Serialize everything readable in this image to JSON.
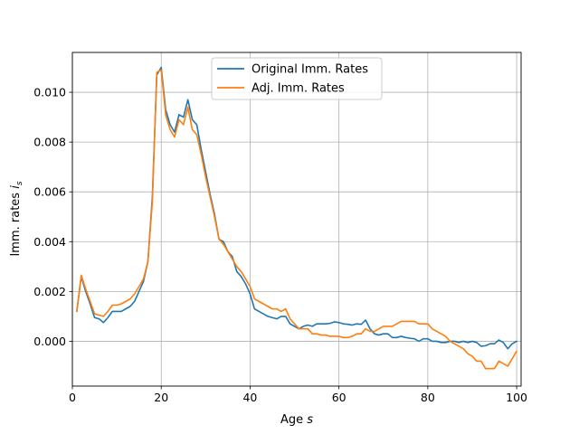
{
  "chart_data": {
    "type": "line",
    "xlabel_text": "Age ",
    "xlabel_var": "s",
    "ylabel_text": "Imm. rates ",
    "ylabel_var": "i",
    "ylabel_sub": "s",
    "xlim": [
      0,
      101
    ],
    "ylim": [
      -0.0018,
      0.0116
    ],
    "xticks": [
      0,
      20,
      40,
      60,
      80,
      100
    ],
    "xtick_labels": [
      "0",
      "20",
      "40",
      "60",
      "80",
      "100"
    ],
    "yticks": [
      0.0,
      0.002,
      0.004,
      0.006,
      0.008,
      0.01
    ],
    "ytick_labels": [
      "0.000",
      "0.002",
      "0.004",
      "0.006",
      "0.008",
      "0.010"
    ],
    "grid": true,
    "legend_position": "upper center",
    "series": [
      {
        "name": "Original Imm. Rates",
        "color": "#1f77b4",
        "x": [
          1,
          2,
          3,
          4,
          5,
          6,
          7,
          8,
          9,
          10,
          11,
          12,
          13,
          14,
          15,
          16,
          17,
          18,
          19,
          20,
          21,
          22,
          23,
          24,
          25,
          26,
          27,
          28,
          29,
          30,
          31,
          32,
          33,
          34,
          35,
          36,
          37,
          38,
          39,
          40,
          41,
          42,
          43,
          44,
          45,
          46,
          47,
          48,
          49,
          50,
          51,
          52,
          53,
          54,
          55,
          56,
          57,
          58,
          59,
          60,
          61,
          62,
          63,
          64,
          65,
          66,
          67,
          68,
          69,
          70,
          71,
          72,
          73,
          74,
          75,
          76,
          77,
          78,
          79,
          80,
          81,
          82,
          83,
          84,
          85,
          86,
          87,
          88,
          89,
          90,
          91,
          92,
          93,
          94,
          95,
          96,
          97,
          98,
          99,
          100
        ],
        "values": [
          0.0012,
          0.0026,
          0.002,
          0.0015,
          0.00095,
          0.0009,
          0.00075,
          0.00095,
          0.0012,
          0.0012,
          0.0012,
          0.0013,
          0.0014,
          0.0016,
          0.002,
          0.0024,
          0.0032,
          0.0058,
          0.0107,
          0.011,
          0.0093,
          0.0087,
          0.0084,
          0.0091,
          0.009,
          0.0097,
          0.0089,
          0.0087,
          0.0077,
          0.0068,
          0.0059,
          0.0051,
          0.0041,
          0.004,
          0.0036,
          0.0034,
          0.0028,
          0.0026,
          0.0023,
          0.0019,
          0.0013,
          0.0012,
          0.0011,
          0.001,
          0.00095,
          0.0009,
          0.001,
          0.001,
          0.0007,
          0.0006,
          0.0005,
          0.0006,
          0.00065,
          0.0006,
          0.0007,
          0.0007,
          0.0007,
          0.00072,
          0.00078,
          0.00075,
          0.0007,
          0.00068,
          0.00065,
          0.0007,
          0.00068,
          0.00085,
          0.0005,
          0.0003,
          0.00025,
          0.0003,
          0.0003,
          0.00015,
          0.00015,
          0.0002,
          0.00015,
          0.00012,
          0.0001,
          0.0,
          0.0001,
          0.0001,
          0.0,
          0.0,
          -5e-05,
          -5e-05,
          0.0,
          0.0,
          -5e-05,
          0.0,
          -5e-05,
          0.0,
          -5e-05,
          -0.0002,
          -0.00018,
          -0.0001,
          -0.0001,
          5e-05,
          -5e-05,
          -0.0003,
          -0.0001,
          0.0
        ]
      },
      {
        "name": "Adj. Imm. Rates",
        "color": "#ff7f0e",
        "x": [
          1,
          2,
          3,
          4,
          5,
          6,
          7,
          8,
          9,
          10,
          11,
          12,
          13,
          14,
          15,
          16,
          17,
          18,
          19,
          20,
          21,
          22,
          23,
          24,
          25,
          26,
          27,
          28,
          29,
          30,
          31,
          32,
          33,
          34,
          35,
          36,
          37,
          38,
          39,
          40,
          41,
          42,
          43,
          44,
          45,
          46,
          47,
          48,
          49,
          50,
          51,
          52,
          53,
          54,
          55,
          56,
          57,
          58,
          59,
          60,
          61,
          62,
          63,
          64,
          65,
          66,
          67,
          68,
          69,
          70,
          71,
          72,
          73,
          74,
          75,
          76,
          77,
          78,
          79,
          80,
          81,
          82,
          83,
          84,
          85,
          86,
          87,
          88,
          89,
          90,
          91,
          92,
          93,
          94,
          95,
          96,
          97,
          98,
          99,
          100
        ],
        "values": [
          0.0012,
          0.00265,
          0.0021,
          0.0016,
          0.0011,
          0.00105,
          0.001,
          0.0012,
          0.00145,
          0.00145,
          0.0015,
          0.0016,
          0.0017,
          0.0019,
          0.0022,
          0.0025,
          0.0032,
          0.0056,
          0.0108,
          0.0109,
          0.0091,
          0.0085,
          0.0082,
          0.0089,
          0.0087,
          0.0094,
          0.0085,
          0.0083,
          0.0075,
          0.0066,
          0.0058,
          0.005,
          0.0041,
          0.0039,
          0.0036,
          0.0033,
          0.003,
          0.0028,
          0.0025,
          0.0022,
          0.0017,
          0.0016,
          0.0015,
          0.0014,
          0.0013,
          0.0013,
          0.0012,
          0.0013,
          0.0009,
          0.0007,
          0.0005,
          0.0005,
          0.0005,
          0.0003,
          0.0003,
          0.00025,
          0.00025,
          0.0002,
          0.0002,
          0.0002,
          0.00015,
          0.00015,
          0.0002,
          0.0003,
          0.0003,
          0.0005,
          0.0004,
          0.0004,
          0.0005,
          0.0006,
          0.0006,
          0.0006,
          0.0007,
          0.0008,
          0.0008,
          0.0008,
          0.0008,
          0.0007,
          0.0007,
          0.0007,
          0.0005,
          0.0004,
          0.0003,
          0.0002,
          0.0,
          -0.0001,
          -0.0002,
          -0.0003,
          -0.0005,
          -0.0006,
          -0.0008,
          -0.0008,
          -0.0011,
          -0.0011,
          -0.0011,
          -0.0008,
          -0.0009,
          -0.001,
          -0.0007,
          -0.0004
        ]
      }
    ]
  }
}
